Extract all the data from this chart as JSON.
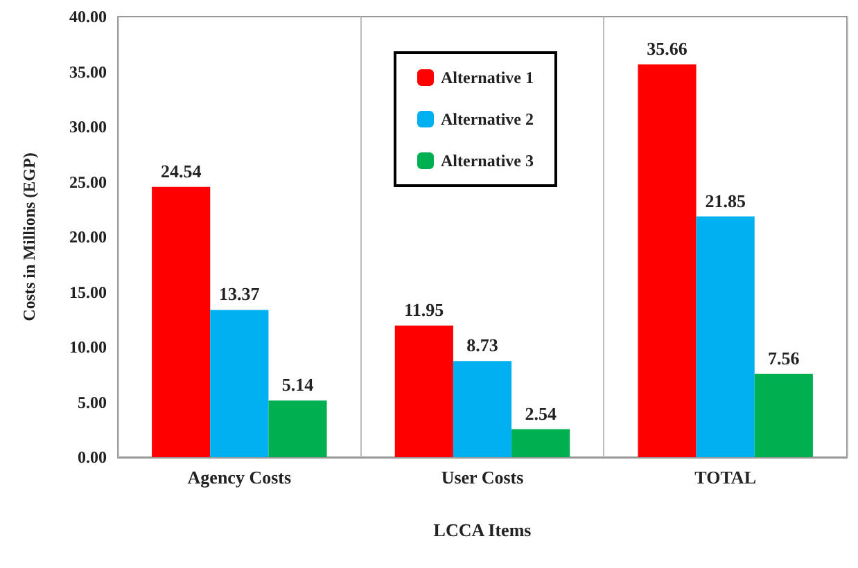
{
  "chart_data": {
    "type": "bar",
    "xlabel": "LCCA Items",
    "ylabel": "Costs in Millions (EGP)",
    "categories": [
      "Agency Costs",
      "User Costs",
      "TOTAL"
    ],
    "series": [
      {
        "name": "Alternative 1",
        "color": "#ff0000",
        "values": [
          24.54,
          11.95,
          35.66
        ]
      },
      {
        "name": "Alternative 2",
        "color": "#00b0f0",
        "values": [
          13.37,
          8.73,
          21.85
        ]
      },
      {
        "name": "Alternative 3",
        "color": "#00b050",
        "values": [
          5.14,
          2.54,
          7.56
        ]
      }
    ],
    "ylim": [
      0,
      40
    ],
    "yticks": [
      {
        "value": 0,
        "label": "0.00"
      },
      {
        "value": 5,
        "label": "5.00"
      },
      {
        "value": 10,
        "label": "10.00"
      },
      {
        "value": 15,
        "label": "15.00"
      },
      {
        "value": 20,
        "label": "20.00"
      },
      {
        "value": 25,
        "label": "25.00"
      },
      {
        "value": 30,
        "label": "30.00"
      },
      {
        "value": 35,
        "label": "35.00"
      },
      {
        "value": 40,
        "label": "40.00"
      }
    ],
    "data_labels": true,
    "grid": "x",
    "legend": "top"
  }
}
